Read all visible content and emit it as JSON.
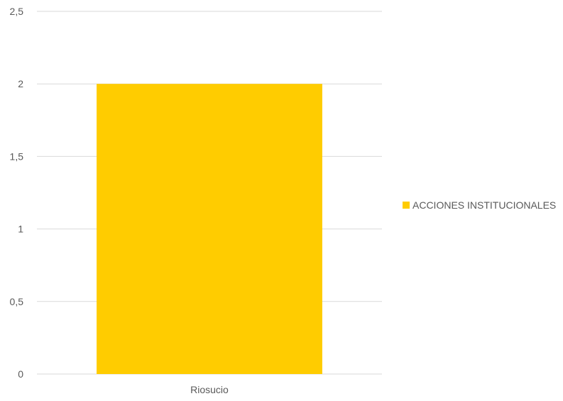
{
  "chart_data": {
    "type": "bar",
    "categories": [
      "Riosucio"
    ],
    "series": [
      {
        "name": "ACCIONES INSTITUCIONALES",
        "values": [
          2
        ],
        "color": "#ffcc00"
      }
    ],
    "ylim": [
      0,
      2.5
    ],
    "yticks": [
      0,
      0.5,
      1,
      1.5,
      2,
      2.5
    ],
    "ytick_labels": [
      "0",
      "0,5",
      "1",
      "1,5",
      "2",
      "2,5"
    ],
    "grid": true,
    "legend": "right",
    "title": "",
    "xlabel": "",
    "ylabel": ""
  }
}
